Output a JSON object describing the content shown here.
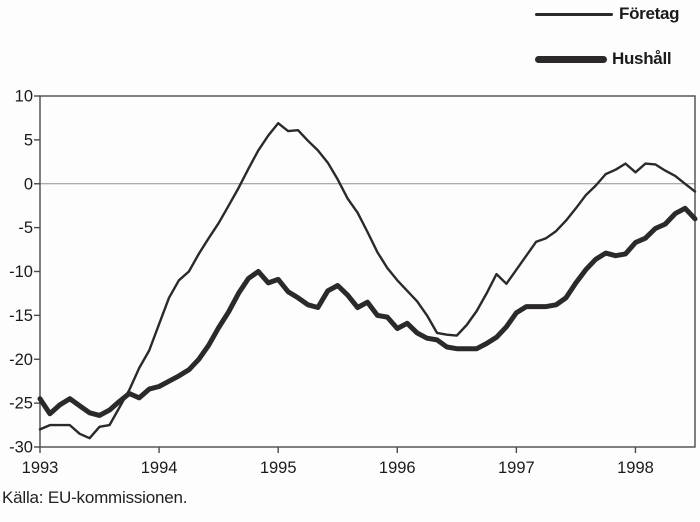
{
  "legend": [
    {
      "label": "Företag",
      "style": "thin"
    },
    {
      "label": "Hushåll",
      "style": "thick"
    }
  ],
  "source": "Källa: EU-kommissionen.",
  "colors": {
    "line": "#2b292a",
    "axis": "#4a4a4a",
    "zero_gridline": "#909090",
    "text": "#1c1a1b",
    "background": "#fdfdfd"
  },
  "chart_data": {
    "type": "line",
    "title": "",
    "xlabel": "",
    "ylabel": "",
    "frequency": "monthly",
    "x_start": "1993-01",
    "x_end": "1998-07",
    "x_tick_labels": [
      "1993",
      "1994",
      "1995",
      "1996",
      "1997",
      "1998"
    ],
    "y_ticks": [
      10,
      5,
      0,
      -5,
      -10,
      -15,
      -20,
      -25,
      -30
    ],
    "ylim": [
      -30,
      10
    ],
    "grid": "horizontal zero line only",
    "legend_position": "top-right",
    "series": [
      {
        "name": "Företag",
        "line_width": "thin",
        "values": [
          -28,
          -27.5,
          -27.5,
          -27.5,
          -28.5,
          -29,
          -27.7,
          -27.5,
          -25.5,
          -23.5,
          -21,
          -19,
          -16,
          -13,
          -11,
          -10,
          -8,
          -6.2,
          -4.5,
          -2.5,
          -0.5,
          1.7,
          3.8,
          5.5,
          6.9,
          6,
          6.1,
          4.9,
          3.8,
          2.4,
          0.5,
          -1.7,
          -3.3,
          -5.5,
          -7.8,
          -9.6,
          -11,
          -12.2,
          -13.4,
          -15,
          -17,
          -17.2,
          -17.3,
          -16.1,
          -14.5,
          -12.5,
          -10.3,
          -11.4,
          -9.8,
          -8.2,
          -6.6,
          -6.2,
          -5.4,
          -4.2,
          -2.8,
          -1.3,
          -0.2,
          1.1,
          1.6,
          2.3,
          1.3,
          2.3,
          2.2,
          1.5,
          0.9,
          0,
          -0.9
        ]
      },
      {
        "name": "Hushåll",
        "line_width": "thick",
        "values": [
          -24.5,
          -26.2,
          -25.2,
          -24.5,
          -25.3,
          -26.1,
          -26.4,
          -25.8,
          -24.8,
          -23.9,
          -24.4,
          -23.4,
          -23.1,
          -22.5,
          -21.9,
          -21.2,
          -20,
          -18.4,
          -16.4,
          -14.6,
          -12.5,
          -10.8,
          -10,
          -11.3,
          -10.9,
          -12.3,
          -13,
          -13.8,
          -14.1,
          -12.2,
          -11.6,
          -12.7,
          -14.1,
          -13.5,
          -15,
          -15.2,
          -16.5,
          -15.9,
          -17,
          -17.6,
          -17.8,
          -18.6,
          -18.8,
          -18.8,
          -18.8,
          -18.2,
          -17.5,
          -16.3,
          -14.7,
          -14,
          -14,
          -14,
          -13.8,
          -13,
          -11.3,
          -9.8,
          -8.6,
          -7.9,
          -8.2,
          -8,
          -6.7,
          -6.2,
          -5.1,
          -4.6,
          -3.4,
          -2.8,
          -4
        ]
      }
    ]
  }
}
